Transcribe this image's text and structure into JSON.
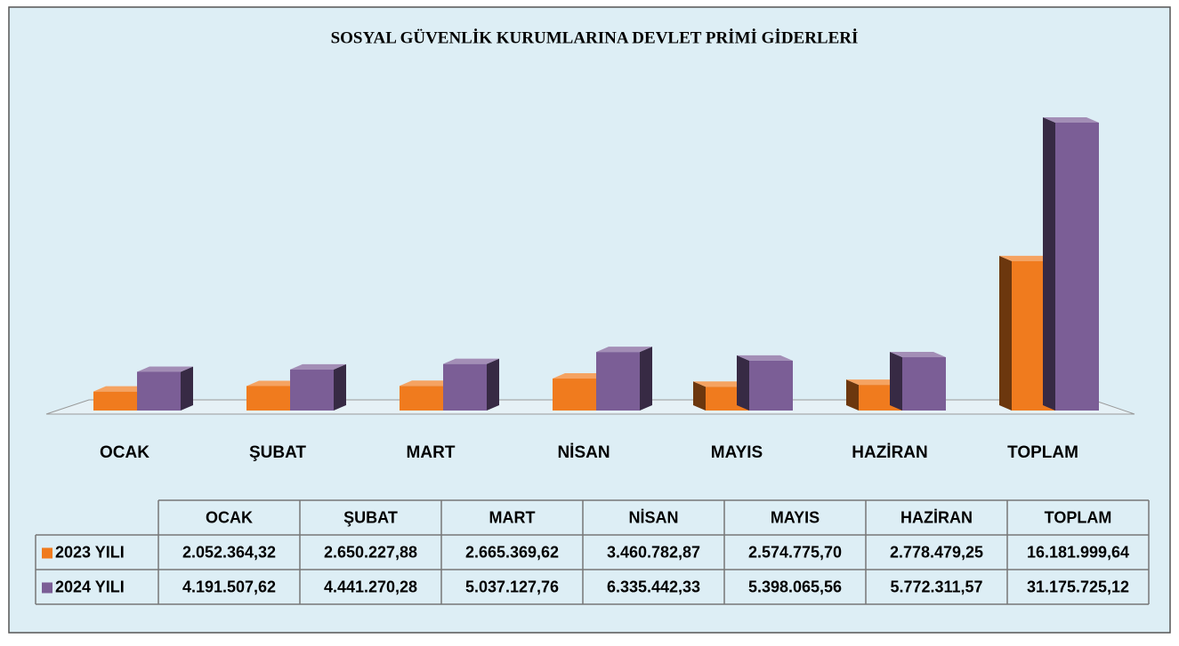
{
  "chart_data": {
    "type": "bar3d",
    "title": "SOSYAL GÜVENLİK KURUMLARINA DEVLET PRİMİ GİDERLERİ",
    "categories": [
      "OCAK",
      "ŞUBAT",
      "MART",
      "NİSAN",
      "MAYIS",
      "HAZİRAN",
      "TOPLAM"
    ],
    "series": [
      {
        "name": "2023 YILI",
        "color": "#f07b1e",
        "values": [
          2052364.32,
          2650227.88,
          2665369.62,
          3460782.87,
          2574775.7,
          2778479.25,
          16181999.64
        ],
        "value_labels": [
          "2.052.364,32",
          "2.650.227,88",
          "2.665.369,62",
          "3.460.782,87",
          "2.574.775,70",
          "2.778.479,25",
          "16.181.999,64"
        ]
      },
      {
        "name": "2024 YILI",
        "color": "#7b5e96",
        "values": [
          4191507.62,
          4441270.28,
          5037127.76,
          6335442.33,
          5398065.56,
          5772311.57,
          31175725.12
        ],
        "value_labels": [
          "4.191.507,62",
          "4.441.270,28",
          "5.037.127,76",
          "6.335.442,33",
          "5.398.065,56",
          "5.772.311,57",
          "31.175.725,12"
        ]
      }
    ]
  }
}
